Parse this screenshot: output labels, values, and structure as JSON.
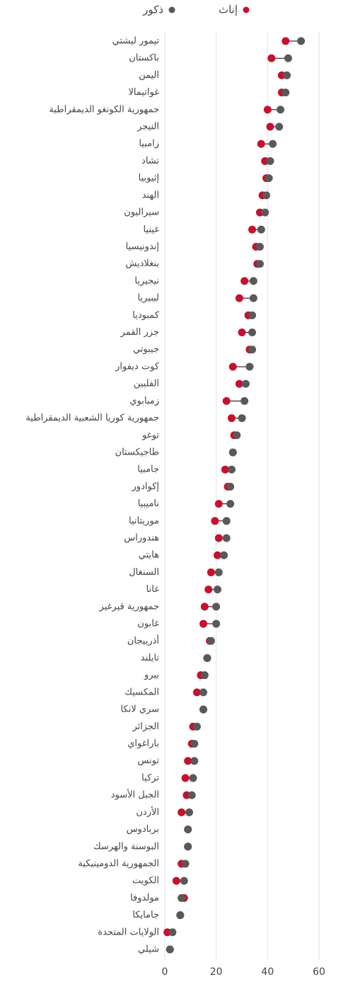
{
  "chart_data": {
    "type": "dumbbell",
    "categories": [
      "تيمور ليشتي",
      "باكستان",
      "اليمن",
      "غواتيمالا",
      "جمهورية الكونغو الديمقراطية",
      "النيجر",
      "زامبيا",
      "تشاد",
      "إثيوبيا",
      "الهند",
      "سيراليون",
      "غينيا",
      "إندونيسيا",
      "بنغلاديش",
      "نيجيريا",
      "ليبيريا",
      "كمبوديا",
      "جزر القمر",
      "جيبوتي",
      "كوت ديفوار",
      "الفلبين",
      "زمبابوي",
      "جمهورية كوريا الشعبية الديمقراطية",
      "توغو",
      "طاجيكستان",
      "جامبيا",
      "إكوادور",
      "ناميبيا",
      "موريتانيا",
      "هندوراس",
      "هايتي",
      "السنغال",
      "غانا",
      "جمهورية قيرغيز",
      "غابون",
      "أذربيجان",
      "تايلند",
      "بيرو",
      "المكسيك",
      "سري لانكا",
      "الجزائر",
      "باراغواي",
      "تونس",
      "تركيا",
      "الجبل الأسود",
      "الأردن",
      "بربادوس",
      "البوسنة والهرسك",
      "الجمهورية الدومينيكية",
      "الكويت",
      "مولدوفا",
      "جامايكا",
      "الولايات المتحدة",
      "شيلي"
    ],
    "series": [
      {
        "name": "إناث",
        "color": "#c8102e",
        "values": [
          47,
          41.5,
          45.5,
          45.5,
          40,
          41,
          37.5,
          39,
          39.5,
          38,
          37,
          34,
          35.5,
          36,
          31,
          29,
          32.5,
          30,
          33,
          26.5,
          29,
          24,
          26,
          27,
          26.5,
          23.5,
          24.5,
          21,
          19.5,
          21,
          20.5,
          18,
          17,
          15.5,
          15,
          17.5,
          16.5,
          14,
          12.5,
          15,
          11,
          10.5,
          9,
          8,
          8.5,
          6.5,
          9,
          9,
          6.5,
          4.5,
          7.5,
          6,
          1,
          2
        ]
      },
      {
        "name": "ذكور",
        "color": "#595959",
        "values": [
          53,
          48,
          47.5,
          47,
          45,
          44.5,
          42,
          41,
          40.5,
          39.5,
          39,
          37.5,
          37,
          37,
          34.5,
          34.5,
          34,
          34,
          34,
          33,
          31.5,
          31,
          30,
          28,
          26.5,
          26,
          25.5,
          25.5,
          24,
          24,
          23,
          21,
          20.5,
          20,
          20,
          18,
          16.5,
          15.5,
          15,
          15,
          12.5,
          11.5,
          11.5,
          11,
          10.5,
          9.5,
          9,
          9,
          8,
          7.5,
          6.5,
          6,
          3,
          2
        ]
      }
    ],
    "xlim": [
      0,
      60
    ],
    "xticks": [
      0,
      20,
      40,
      60
    ],
    "grid": true
  }
}
